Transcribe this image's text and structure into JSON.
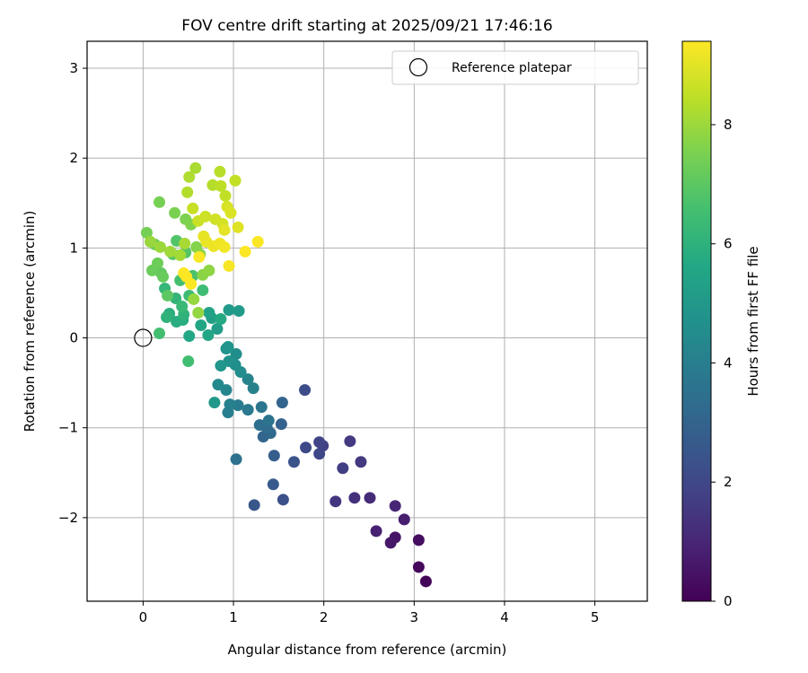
{
  "chart_data": {
    "type": "scatter",
    "title": "FOV centre drift starting at 2025/09/21 17:46:16",
    "xlabel": "Angular distance from reference (arcmin)",
    "ylabel": "Rotation from reference (arcmin)",
    "xlim": [
      -0.62,
      5.58
    ],
    "ylim": [
      -2.93,
      3.3
    ],
    "xticks": [
      0,
      1,
      2,
      3,
      4,
      5
    ],
    "yticks": [
      -2,
      -1,
      0,
      1,
      2,
      3
    ],
    "ytick_labels": [
      "−2",
      "−1",
      "0",
      "1",
      "2",
      "3"
    ],
    "grid": true,
    "legend": {
      "position": "top-right",
      "entries": [
        "Reference platepar"
      ]
    },
    "reference": {
      "x": 0,
      "y": 0,
      "label": "Reference platepar"
    },
    "colorbar": {
      "label": "Hours from first FF file",
      "colormap": "viridis",
      "range": [
        0,
        9.4
      ],
      "ticks": [
        0,
        2,
        4,
        6,
        8
      ]
    },
    "points": [
      {
        "x": 3.13,
        "y": -2.71,
        "h": 0.1
      },
      {
        "x": 3.05,
        "y": -2.55,
        "h": 0.2
      },
      {
        "x": 3.05,
        "y": -2.25,
        "h": 0.35
      },
      {
        "x": 2.79,
        "y": -2.22,
        "h": 0.5
      },
      {
        "x": 2.74,
        "y": -2.28,
        "h": 0.6
      },
      {
        "x": 2.89,
        "y": -2.02,
        "h": 0.75
      },
      {
        "x": 2.58,
        "y": -2.15,
        "h": 0.85
      },
      {
        "x": 2.79,
        "y": -1.87,
        "h": 1.0
      },
      {
        "x": 2.51,
        "y": -1.78,
        "h": 1.15
      },
      {
        "x": 2.34,
        "y": -1.78,
        "h": 1.3
      },
      {
        "x": 2.13,
        "y": -1.82,
        "h": 1.45
      },
      {
        "x": 2.41,
        "y": -1.38,
        "h": 1.55
      },
      {
        "x": 2.29,
        "y": -1.15,
        "h": 1.6
      },
      {
        "x": 2.21,
        "y": -1.45,
        "h": 1.7
      },
      {
        "x": 1.99,
        "y": -1.2,
        "h": 1.8
      },
      {
        "x": 1.95,
        "y": -1.16,
        "h": 1.9
      },
      {
        "x": 1.95,
        "y": -1.29,
        "h": 2.0
      },
      {
        "x": 1.8,
        "y": -1.22,
        "h": 2.1
      },
      {
        "x": 1.79,
        "y": -0.58,
        "h": 2.2
      },
      {
        "x": 1.55,
        "y": -1.8,
        "h": 2.3
      },
      {
        "x": 1.67,
        "y": -1.38,
        "h": 2.4
      },
      {
        "x": 1.23,
        "y": -1.86,
        "h": 2.5
      },
      {
        "x": 1.44,
        "y": -1.63,
        "h": 2.6
      },
      {
        "x": 1.45,
        "y": -1.31,
        "h": 2.8
      },
      {
        "x": 1.53,
        "y": -0.96,
        "h": 2.9
      },
      {
        "x": 1.54,
        "y": -0.72,
        "h": 3.0
      },
      {
        "x": 1.33,
        "y": -1.1,
        "h": 3.1
      },
      {
        "x": 1.41,
        "y": -1.06,
        "h": 3.2
      },
      {
        "x": 1.37,
        "y": -1.0,
        "h": 3.3
      },
      {
        "x": 1.29,
        "y": -0.97,
        "h": 3.4
      },
      {
        "x": 1.03,
        "y": -1.35,
        "h": 3.5
      },
      {
        "x": 1.39,
        "y": -0.92,
        "h": 3.6
      },
      {
        "x": 1.31,
        "y": -0.77,
        "h": 3.7
      },
      {
        "x": 1.16,
        "y": -0.8,
        "h": 3.8
      },
      {
        "x": 1.05,
        "y": -0.75,
        "h": 3.9
      },
      {
        "x": 0.94,
        "y": -0.83,
        "h": 4.0
      },
      {
        "x": 0.96,
        "y": -0.74,
        "h": 4.05
      },
      {
        "x": 1.22,
        "y": -0.56,
        "h": 4.1
      },
      {
        "x": 1.16,
        "y": -0.46,
        "h": 4.2
      },
      {
        "x": 0.92,
        "y": -0.58,
        "h": 4.3
      },
      {
        "x": 0.83,
        "y": -0.52,
        "h": 4.4
      },
      {
        "x": 1.08,
        "y": -0.38,
        "h": 4.5
      },
      {
        "x": 1.03,
        "y": -0.18,
        "h": 4.6
      },
      {
        "x": 1.02,
        "y": -0.3,
        "h": 4.65
      },
      {
        "x": 0.95,
        "y": -0.26,
        "h": 4.7
      },
      {
        "x": 0.92,
        "y": -0.12,
        "h": 4.8
      },
      {
        "x": 0.94,
        "y": -0.1,
        "h": 4.85
      },
      {
        "x": 0.86,
        "y": -0.31,
        "h": 4.9
      },
      {
        "x": 0.79,
        "y": -0.72,
        "h": 5.0
      },
      {
        "x": 1.06,
        "y": 0.3,
        "h": 5.05
      },
      {
        "x": 0.95,
        "y": 0.31,
        "h": 5.1
      },
      {
        "x": 0.82,
        "y": 0.1,
        "h": 5.2
      },
      {
        "x": 0.76,
        "y": 0.22,
        "h": 5.3
      },
      {
        "x": 0.73,
        "y": 0.28,
        "h": 5.4
      },
      {
        "x": 0.64,
        "y": 0.14,
        "h": 5.5
      },
      {
        "x": 0.72,
        "y": 0.03,
        "h": 5.55
      },
      {
        "x": 0.51,
        "y": 0.02,
        "h": 5.6
      },
      {
        "x": 0.86,
        "y": 0.21,
        "h": 5.7
      },
      {
        "x": 0.44,
        "y": 0.2,
        "h": 5.8
      },
      {
        "x": 0.37,
        "y": 0.18,
        "h": 5.85
      },
      {
        "x": 0.29,
        "y": 0.27,
        "h": 5.9
      },
      {
        "x": 0.26,
        "y": 0.23,
        "h": 6.0
      },
      {
        "x": 0.45,
        "y": 0.26,
        "h": 6.05
      },
      {
        "x": 0.36,
        "y": 0.44,
        "h": 6.1
      },
      {
        "x": 0.24,
        "y": 0.55,
        "h": 6.2
      },
      {
        "x": 0.43,
        "y": 0.35,
        "h": 6.3
      },
      {
        "x": 0.51,
        "y": 0.47,
        "h": 6.4
      },
      {
        "x": 0.66,
        "y": 0.53,
        "h": 6.45
      },
      {
        "x": 0.5,
        "y": -0.26,
        "h": 6.5
      },
      {
        "x": 0.18,
        "y": 0.05,
        "h": 6.55
      },
      {
        "x": 0.41,
        "y": 0.64,
        "h": 6.6
      },
      {
        "x": 0.55,
        "y": 0.69,
        "h": 6.7
      },
      {
        "x": 0.37,
        "y": 1.08,
        "h": 6.8
      },
      {
        "x": 0.47,
        "y": 0.95,
        "h": 6.85
      },
      {
        "x": 0.33,
        "y": 0.93,
        "h": 6.9
      },
      {
        "x": 0.27,
        "y": 0.47,
        "h": 7.0
      },
      {
        "x": 0.2,
        "y": 0.72,
        "h": 7.1
      },
      {
        "x": 0.22,
        "y": 0.68,
        "h": 7.2
      },
      {
        "x": 0.1,
        "y": 0.75,
        "h": 7.25
      },
      {
        "x": 0.16,
        "y": 0.83,
        "h": 7.3
      },
      {
        "x": 0.13,
        "y": 1.04,
        "h": 7.35
      },
      {
        "x": 0.04,
        "y": 1.17,
        "h": 7.4
      },
      {
        "x": 0.18,
        "y": 1.51,
        "h": 7.45
      },
      {
        "x": 0.35,
        "y": 1.39,
        "h": 7.5
      },
      {
        "x": 0.47,
        "y": 1.32,
        "h": 7.55
      },
      {
        "x": 0.53,
        "y": 1.26,
        "h": 7.6
      },
      {
        "x": 0.59,
        "y": 1.01,
        "h": 7.65
      },
      {
        "x": 0.63,
        "y": 0.93,
        "h": 7.7
      },
      {
        "x": 0.66,
        "y": 0.7,
        "h": 7.75
      },
      {
        "x": 0.73,
        "y": 0.75,
        "h": 7.8
      },
      {
        "x": 0.61,
        "y": 0.28,
        "h": 7.85
      },
      {
        "x": 0.56,
        "y": 0.43,
        "h": 7.9
      },
      {
        "x": 0.08,
        "y": 1.07,
        "h": 7.95
      },
      {
        "x": 0.19,
        "y": 1.01,
        "h": 8.0
      },
      {
        "x": 0.3,
        "y": 0.96,
        "h": 8.05
      },
      {
        "x": 0.41,
        "y": 0.92,
        "h": 8.1
      },
      {
        "x": 0.46,
        "y": 1.05,
        "h": 8.15
      },
      {
        "x": 0.58,
        "y": 1.89,
        "h": 8.2
      },
      {
        "x": 0.51,
        "y": 1.79,
        "h": 8.25
      },
      {
        "x": 0.49,
        "y": 1.62,
        "h": 8.3
      },
      {
        "x": 0.77,
        "y": 1.7,
        "h": 8.35
      },
      {
        "x": 0.85,
        "y": 1.85,
        "h": 8.4
      },
      {
        "x": 0.86,
        "y": 1.69,
        "h": 8.45
      },
      {
        "x": 0.91,
        "y": 1.58,
        "h": 8.5
      },
      {
        "x": 1.02,
        "y": 1.75,
        "h": 8.55
      },
      {
        "x": 0.55,
        "y": 1.44,
        "h": 8.6
      },
      {
        "x": 0.61,
        "y": 1.3,
        "h": 8.65
      },
      {
        "x": 0.69,
        "y": 1.35,
        "h": 8.7
      },
      {
        "x": 0.8,
        "y": 1.32,
        "h": 8.75
      },
      {
        "x": 0.88,
        "y": 1.27,
        "h": 8.8
      },
      {
        "x": 0.93,
        "y": 1.46,
        "h": 8.85
      },
      {
        "x": 0.97,
        "y": 1.39,
        "h": 8.9
      },
      {
        "x": 1.05,
        "y": 1.23,
        "h": 8.95
      },
      {
        "x": 0.9,
        "y": 1.2,
        "h": 9.0
      },
      {
        "x": 0.67,
        "y": 1.13,
        "h": 9.05
      },
      {
        "x": 0.7,
        "y": 1.07,
        "h": 9.1
      },
      {
        "x": 0.78,
        "y": 1.02,
        "h": 9.15
      },
      {
        "x": 0.85,
        "y": 1.05,
        "h": 9.2
      },
      {
        "x": 0.9,
        "y": 1.01,
        "h": 9.25
      },
      {
        "x": 0.95,
        "y": 0.8,
        "h": 9.3
      },
      {
        "x": 1.27,
        "y": 1.07,
        "h": 9.35
      },
      {
        "x": 1.13,
        "y": 0.96,
        "h": 9.38
      },
      {
        "x": 0.48,
        "y": 0.68,
        "h": 9.4
      },
      {
        "x": 0.45,
        "y": 0.72,
        "h": 9.4
      },
      {
        "x": 0.53,
        "y": 0.6,
        "h": 9.38
      },
      {
        "x": 0.62,
        "y": 0.9,
        "h": 9.35
      }
    ]
  }
}
